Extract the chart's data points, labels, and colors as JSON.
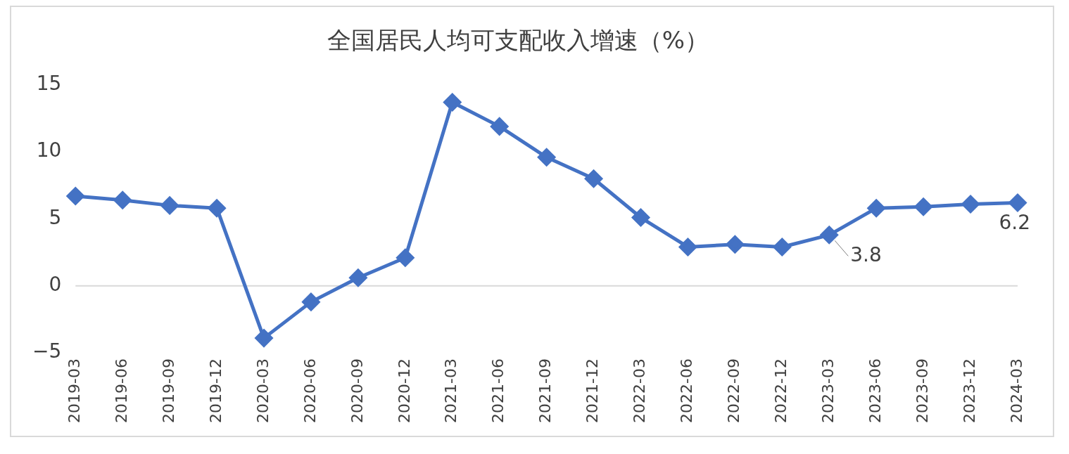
{
  "chart_data": {
    "type": "line",
    "title": "全国居民人均可支配收入增速（%）",
    "categories": [
      "2019-03",
      "2019-06",
      "2019-09",
      "2019-12",
      "2020-03",
      "2020-06",
      "2020-09",
      "2020-12",
      "2021-03",
      "2021-06",
      "2021-09",
      "2021-12",
      "2022-03",
      "2022-06",
      "2022-09",
      "2022-12",
      "2023-03",
      "2023-06",
      "2023-09",
      "2023-12",
      "2024-03"
    ],
    "series": [
      {
        "color": "#4472c4",
        "values": [
          6.7,
          6.4,
          6.0,
          5.8,
          -3.9,
          -1.2,
          0.6,
          2.1,
          13.7,
          11.9,
          9.6,
          8.0,
          5.1,
          2.9,
          3.1,
          2.9,
          3.8,
          5.8,
          5.9,
          6.1,
          6.2
        ],
        "value_labels": [
          null,
          null,
          null,
          null,
          null,
          null,
          null,
          null,
          null,
          null,
          null,
          null,
          null,
          null,
          null,
          null,
          "3.8",
          null,
          null,
          null,
          "6.2"
        ]
      }
    ],
    "ylim": [
      -5,
      15
    ],
    "yticks": [
      -5,
      0,
      5,
      10,
      15
    ],
    "grid": false,
    "ref_lines": [
      {
        "axis": "y",
        "value": 0,
        "color": "#d9d9d9"
      }
    ],
    "legend": false,
    "marker": "diamond",
    "line_style": "solid"
  }
}
